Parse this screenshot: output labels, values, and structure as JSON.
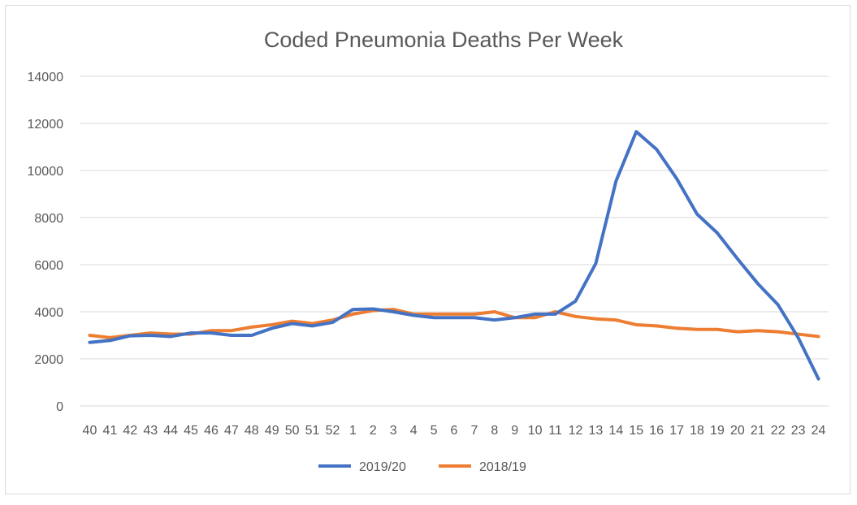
{
  "chart_data": {
    "type": "line",
    "title": "Coded Pneumonia Deaths Per Week",
    "xlabel": "",
    "ylabel": "",
    "categories": [
      "40",
      "41",
      "42",
      "43",
      "44",
      "45",
      "46",
      "47",
      "48",
      "49",
      "50",
      "51",
      "52",
      "1",
      "2",
      "3",
      "4",
      "5",
      "6",
      "7",
      "8",
      "9",
      "10",
      "11",
      "12",
      "13",
      "14",
      "15",
      "16",
      "17",
      "18",
      "19",
      "20",
      "21",
      "22",
      "23",
      "24"
    ],
    "ylim": [
      0,
      14000
    ],
    "yticks": [
      "0",
      "2000",
      "4000",
      "6000",
      "8000",
      "10000",
      "12000",
      "14000"
    ],
    "grid": true,
    "legend_position": "bottom",
    "series": [
      {
        "name": "2019/20",
        "color": "#4472c4",
        "values": [
          2700,
          2780,
          2980,
          3000,
          2950,
          3100,
          3100,
          3000,
          3000,
          3300,
          3500,
          3400,
          3550,
          4100,
          4120,
          4000,
          3850,
          3750,
          3750,
          3750,
          3650,
          3750,
          3900,
          3900,
          4450,
          6050,
          9550,
          11650,
          10900,
          9650,
          8150,
          7350,
          6250,
          5200,
          4300,
          2900,
          1150
        ]
      },
      {
        "name": "2018/19",
        "color": "#ed7d31",
        "values": [
          3000,
          2900,
          3000,
          3100,
          3050,
          3050,
          3200,
          3200,
          3350,
          3450,
          3600,
          3500,
          3650,
          3900,
          4050,
          4100,
          3900,
          3900,
          3900,
          3900,
          4000,
          3750,
          3750,
          4000,
          3800,
          3700,
          3650,
          3450,
          3400,
          3300,
          3250,
          3250,
          3150,
          3200,
          3150,
          3050,
          2950
        ]
      }
    ]
  }
}
